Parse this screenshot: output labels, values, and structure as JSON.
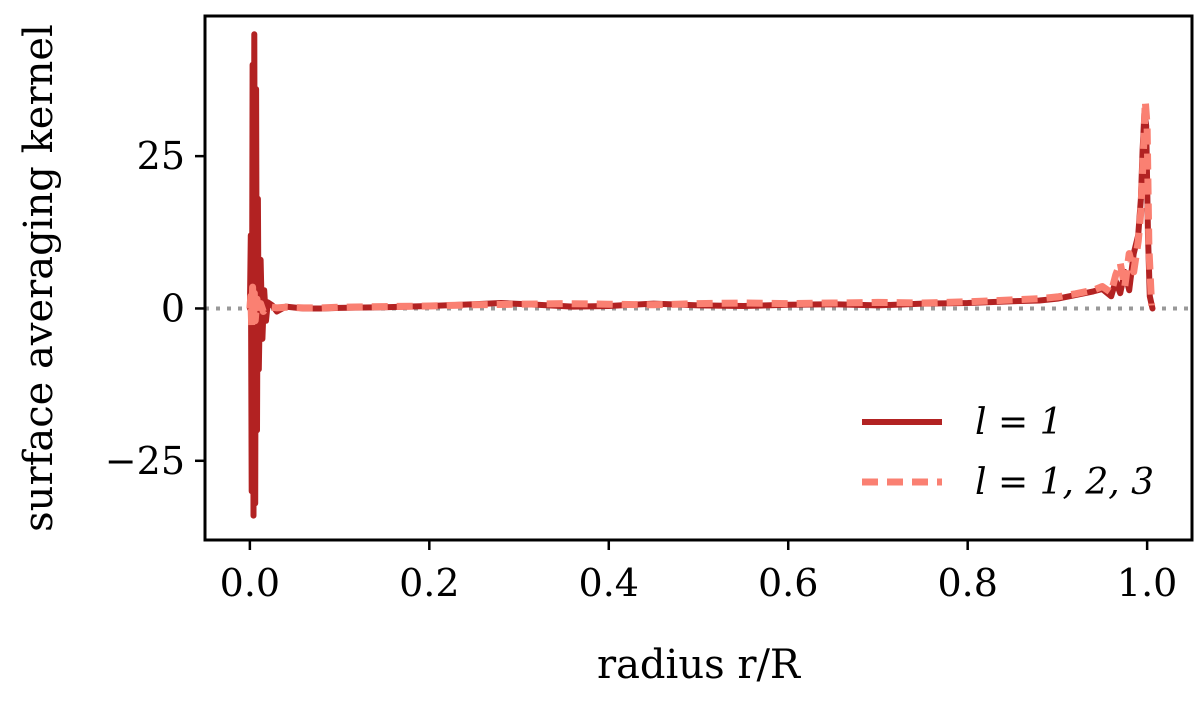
{
  "chart_data": {
    "type": "line",
    "xlabel": "radius r/R",
    "ylabel": "surface averaging kernel",
    "xlim": [
      -0.05,
      1.05
    ],
    "ylim": [
      -38,
      48
    ],
    "xticks": [
      0.0,
      0.2,
      0.4,
      0.6,
      0.8,
      1.0
    ],
    "xtick_labels": [
      "0.0",
      "0.2",
      "0.4",
      "0.6",
      "0.8",
      "1.0"
    ],
    "yticks": [
      -25,
      0,
      25
    ],
    "ytick_labels": [
      "−25",
      "0",
      "25"
    ],
    "grid": false,
    "reference_line": {
      "y": 0,
      "style": "dotted",
      "color": "#999999"
    },
    "legend_position": "lower-right",
    "series": [
      {
        "name": "l = 1",
        "style": "solid",
        "color": "#b22222",
        "x": [
          0.0,
          0.001,
          0.002,
          0.003,
          0.004,
          0.005,
          0.006,
          0.007,
          0.008,
          0.009,
          0.01,
          0.012,
          0.014,
          0.016,
          0.018,
          0.02,
          0.025,
          0.03,
          0.04,
          0.06,
          0.08,
          0.1,
          0.15,
          0.2,
          0.25,
          0.28,
          0.32,
          0.36,
          0.4,
          0.45,
          0.5,
          0.55,
          0.6,
          0.65,
          0.7,
          0.75,
          0.8,
          0.85,
          0.88,
          0.9,
          0.92,
          0.94,
          0.95,
          0.96,
          0.965,
          0.97,
          0.975,
          0.98,
          0.985,
          0.99,
          0.993,
          0.995,
          0.997,
          0.999,
          1.001,
          1.003,
          1.006
        ],
        "y": [
          0,
          12,
          -30,
          40,
          -34,
          45,
          -32,
          36,
          -20,
          18,
          -10,
          8,
          -5,
          3,
          -2,
          1,
          0.5,
          -0.5,
          0.3,
          0,
          0,
          0.1,
          0.2,
          0.4,
          0.7,
          0.9,
          0.6,
          0.3,
          0.4,
          0.8,
          0.5,
          0.4,
          0.6,
          0.7,
          0.5,
          0.8,
          0.9,
          1.2,
          1.3,
          1.6,
          2.2,
          2.8,
          3.2,
          2.0,
          4.5,
          2.5,
          6.0,
          3.0,
          9.0,
          12.0,
          18.0,
          26.0,
          32.0,
          30.0,
          12.0,
          2.0,
          0.0
        ]
      },
      {
        "name": "l = 1, 2, 3",
        "style": "dashed",
        "color": "#fa8072",
        "x": [
          0.0,
          0.001,
          0.002,
          0.003,
          0.004,
          0.005,
          0.006,
          0.008,
          0.01,
          0.012,
          0.015,
          0.02,
          0.03,
          0.04,
          0.06,
          0.08,
          0.1,
          0.15,
          0.2,
          0.25,
          0.3,
          0.35,
          0.4,
          0.45,
          0.5,
          0.55,
          0.6,
          0.65,
          0.7,
          0.75,
          0.8,
          0.85,
          0.88,
          0.9,
          0.92,
          0.94,
          0.95,
          0.96,
          0.965,
          0.97,
          0.975,
          0.98,
          0.985,
          0.99,
          0.993,
          0.996,
          0.998,
          1.0,
          1.002,
          1.005
        ],
        "y": [
          0,
          2.0,
          -3.0,
          3.5,
          -3.0,
          2.5,
          -2.0,
          1.5,
          -1.0,
          0.8,
          -0.5,
          0.3,
          0.1,
          0.2,
          0.1,
          0.1,
          0.2,
          0.3,
          0.4,
          0.6,
          0.7,
          0.8,
          0.7,
          0.6,
          0.8,
          0.9,
          0.8,
          0.9,
          1.0,
          0.9,
          1.1,
          1.4,
          1.6,
          1.9,
          2.4,
          3.0,
          3.6,
          2.6,
          5.5,
          7.5,
          3.5,
          9.0,
          6.0,
          11.0,
          16.0,
          26.0,
          34.0,
          30.0,
          10.0,
          0.5
        ]
      }
    ]
  }
}
